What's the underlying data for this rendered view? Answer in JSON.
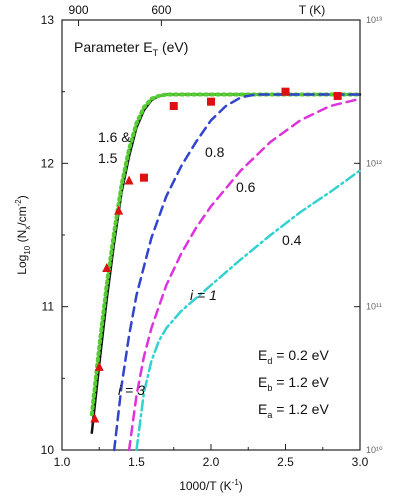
{
  "chart_data": {
    "type": "line",
    "title": "",
    "xlabel": "1000/T (K",
    "xlabel_sup": "-1",
    "xlabel_end": ")",
    "ylabel": "Log",
    "ylabel_sub": "10",
    "ylabel_mid": " (N",
    "ylabel_sub2": "x",
    "ylabel_mid2": "/cm",
    "ylabel_sup": "-2",
    "ylabel_end": ")",
    "top_axis_label": "T (K)",
    "xlim": [
      1.0,
      3.0
    ],
    "ylim": [
      10,
      13
    ],
    "x_ticks": [
      "1.0",
      "1.5",
      "2.0",
      "2.5",
      "3.0"
    ],
    "y_ticks": [
      "10",
      "11",
      "12",
      "13"
    ],
    "top_ticks": [
      {
        "label": "900",
        "x": 1.111
      },
      {
        "label": "600",
        "x": 1.667
      }
    ],
    "right_ticks": [
      {
        "label": "10¹⁰",
        "y": 10
      },
      {
        "label": "10¹¹",
        "y": 11
      },
      {
        "label": "10¹²",
        "y": 12
      },
      {
        "label": "10¹³",
        "y": 13
      }
    ],
    "grid": false,
    "legend": "none",
    "series": [
      {
        "label": "1.6 & 1.5 (solid)",
        "color": "#111111",
        "dash": "solid",
        "x": [
          1.2,
          1.25,
          1.3,
          1.35,
          1.4,
          1.45,
          1.5,
          1.55,
          1.6,
          1.65,
          1.7,
          1.75,
          2.0,
          2.5,
          3.0
        ],
        "y": [
          10.12,
          10.6,
          11.05,
          11.45,
          11.8,
          12.05,
          12.25,
          12.37,
          12.44,
          12.47,
          12.48,
          12.48,
          12.48,
          12.48,
          12.48
        ]
      },
      {
        "label": "1.6 & 1.5 (green dotted)",
        "color": "#55cc33",
        "dash": "dot",
        "x": [
          1.2,
          1.25,
          1.3,
          1.35,
          1.4,
          1.45,
          1.5,
          1.55,
          1.6,
          1.65,
          1.7,
          1.75,
          2.0,
          2.5,
          3.0
        ],
        "y": [
          10.25,
          10.72,
          11.15,
          11.52,
          11.85,
          12.1,
          12.28,
          12.39,
          12.45,
          12.47,
          12.48,
          12.48,
          12.48,
          12.48,
          12.48
        ]
      },
      {
        "label": "0.8",
        "color": "#3344cc",
        "dash": "dash",
        "x": [
          1.35,
          1.4,
          1.45,
          1.5,
          1.6,
          1.7,
          1.8,
          1.9,
          2.0,
          2.1,
          2.2,
          2.3,
          2.5,
          3.0
        ],
        "y": [
          10.0,
          10.45,
          10.8,
          11.08,
          11.48,
          11.77,
          11.98,
          12.15,
          12.3,
          12.4,
          12.46,
          12.48,
          12.48,
          12.48
        ]
      },
      {
        "label": "0.6",
        "color": "#dd33dd",
        "dash": "dash",
        "x": [
          1.45,
          1.5,
          1.55,
          1.6,
          1.7,
          1.8,
          1.9,
          2.0,
          2.2,
          2.4,
          2.6,
          2.8,
          3.0
        ],
        "y": [
          10.0,
          10.38,
          10.65,
          10.85,
          11.15,
          11.37,
          11.55,
          11.7,
          11.95,
          12.15,
          12.3,
          12.4,
          12.45
        ]
      },
      {
        "label": "0.4",
        "color": "#33d1d1",
        "dash": "dashdot",
        "x": [
          1.5,
          1.55,
          1.6,
          1.65,
          1.7,
          1.8,
          2.0,
          2.2,
          2.4,
          2.6,
          2.8,
          3.0
        ],
        "y": [
          10.0,
          10.4,
          10.62,
          10.76,
          10.85,
          10.97,
          11.15,
          11.33,
          11.5,
          11.66,
          11.8,
          11.95
        ]
      }
    ],
    "markers": [
      {
        "label": "measured (squares)",
        "color": "#dd1111",
        "shape": "square",
        "x": [
          1.55,
          1.75,
          2.0,
          2.5,
          2.85
        ],
        "y": [
          11.9,
          12.4,
          12.43,
          12.5,
          12.47
        ]
      },
      {
        "label": "measured (triangles)",
        "color": "#dd1111",
        "shape": "triangle",
        "x": [
          1.22,
          1.25,
          1.3,
          1.38,
          1.45
        ],
        "y": [
          10.22,
          10.58,
          11.27,
          11.67,
          11.88
        ]
      }
    ],
    "annotations": {
      "parameter_prefix": "Parameter E",
      "parameter_sub": "T",
      "parameter_suffix": " (eV)",
      "curve_16": "1.6 &",
      "curve_15": "1.5",
      "curve_08": "0.8",
      "curve_06": "0.6",
      "curve_04": "0.4",
      "i1": "i = 1",
      "i3": "i = 3",
      "ed_prefix": "E",
      "ed_sub": "d",
      "ed_val": " = 0.2 eV",
      "eb_prefix": "E",
      "eb_sub": "b",
      "eb_val": " = 1.2 eV",
      "ea_prefix": "E",
      "ea_sub": "a",
      "ea_val": " = 1.2 eV"
    }
  }
}
